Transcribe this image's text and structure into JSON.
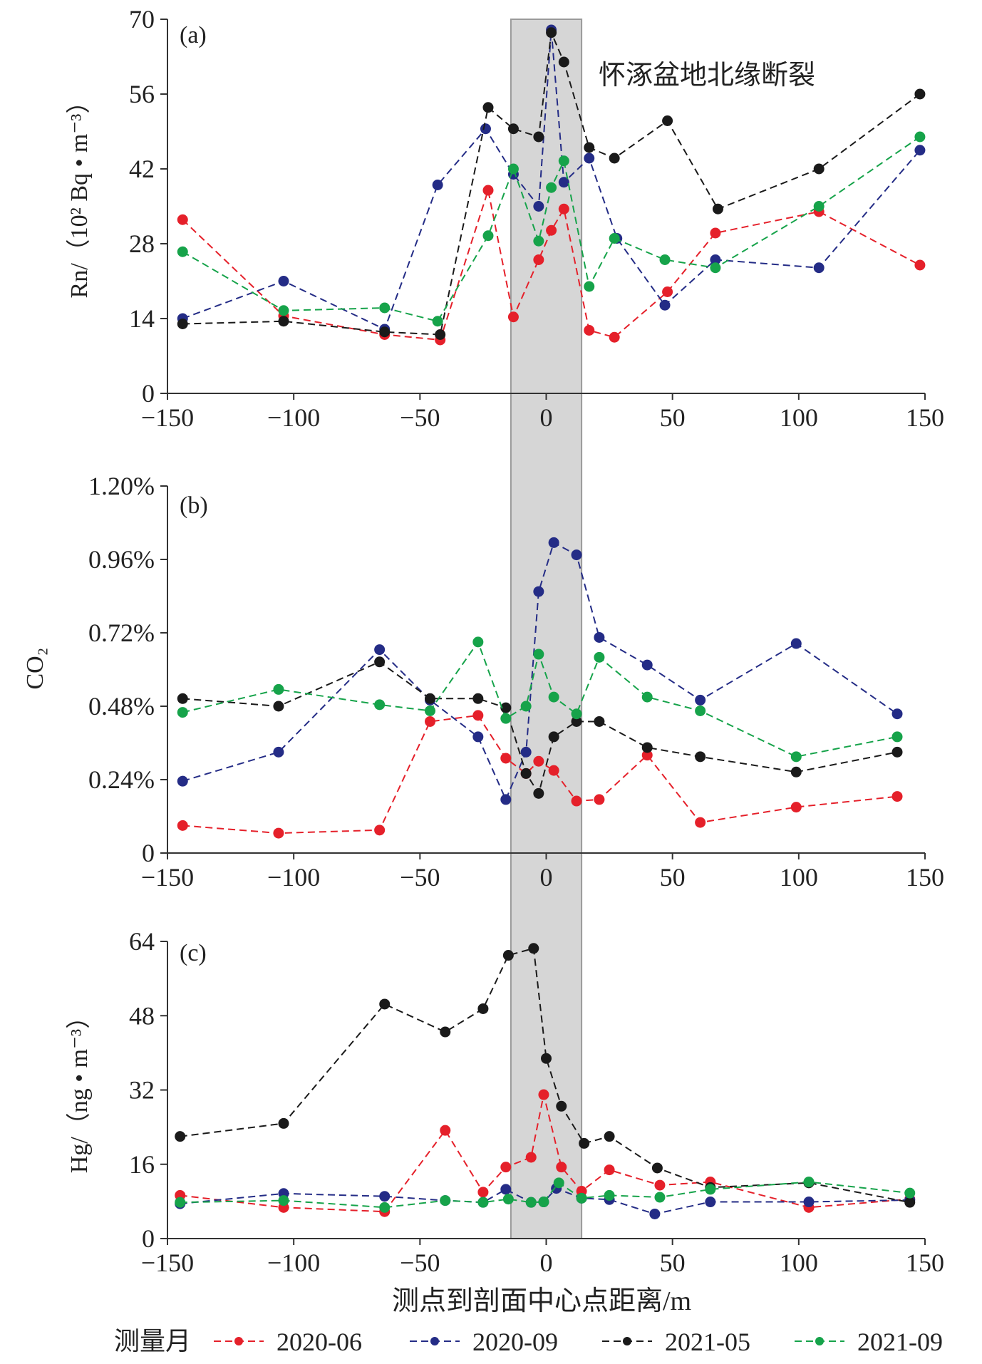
{
  "colors": {
    "2020-06": "#e5202a",
    "2020-09": "#242c86",
    "2021-05": "#1a1a1a",
    "2021-09": "#16a34a",
    "band": "#d6d6d6",
    "axis": "#333333"
  },
  "annotation": "怀涿盆地北缘断裂",
  "xlabel": "测点到剖面中心点距离/m",
  "legend": {
    "title": "测量月",
    "items": [
      "2020-06",
      "2020-09",
      "2021-05",
      "2021-09"
    ]
  },
  "chart_data": [
    {
      "type": "line",
      "panel_label": "(a)",
      "ylabel": "Rn/（10² Bq • m⁻³）",
      "xlim": [
        -150,
        150
      ],
      "ylim": [
        0,
        70
      ],
      "xticks": [
        "−150",
        "−100",
        "−50",
        "0",
        "50",
        "100",
        "150"
      ],
      "yticks": [
        "0",
        "14",
        "28",
        "42",
        "56",
        "70"
      ],
      "shaded_band_x": [
        -14,
        14
      ],
      "series": [
        {
          "name": "2020-06",
          "x": [
            -144,
            -104,
            -64,
            -42,
            -23,
            -13,
            -3,
            2,
            7,
            17,
            27,
            48,
            67,
            108,
            148
          ],
          "y": [
            32.5,
            14.5,
            11,
            10,
            38,
            14.3,
            25,
            30.5,
            34.5,
            11.8,
            10.5,
            19,
            30,
            34,
            24
          ]
        },
        {
          "name": "2020-09",
          "x": [
            -144,
            -104,
            -64,
            -43,
            -24,
            -13,
            -3,
            2,
            7,
            17,
            28,
            47,
            67,
            108,
            148
          ],
          "y": [
            14,
            21,
            12,
            39,
            49.5,
            41,
            35,
            68,
            39.5,
            44,
            29,
            16.5,
            25,
            23.5,
            45.5
          ]
        },
        {
          "name": "2021-05",
          "x": [
            -144,
            -104,
            -64,
            -42,
            -23,
            -13,
            -3,
            2,
            7,
            17,
            27,
            48,
            68,
            108,
            148
          ],
          "y": [
            13,
            13.5,
            11.5,
            11,
            53.5,
            49.5,
            48,
            67.5,
            62,
            46,
            44,
            51,
            34.5,
            42,
            56
          ]
        },
        {
          "name": "2021-09",
          "x": [
            -144,
            -104,
            -64,
            -43,
            -23,
            -13,
            -3,
            2,
            7,
            17,
            27,
            47,
            67,
            108,
            148
          ],
          "y": [
            26.5,
            15.5,
            16,
            13.5,
            29.5,
            42,
            28.5,
            38.5,
            43.5,
            20,
            29,
            25,
            23.5,
            35,
            48
          ]
        }
      ]
    },
    {
      "type": "line",
      "panel_label": "(b)",
      "ylabel": "CO₂",
      "xlim": [
        -150,
        150
      ],
      "ylim": [
        0,
        1.2
      ],
      "xticks": [
        "−150",
        "−100",
        "−50",
        "0",
        "50",
        "100",
        "150"
      ],
      "yticks": [
        "0",
        "0.24%",
        "0.48%",
        "0.72%",
        "0.96%",
        "1.20%"
      ],
      "shaded_band_x": [
        -14,
        14
      ],
      "series": [
        {
          "name": "2020-06",
          "x": [
            -144,
            -106,
            -66,
            -46,
            -27,
            -16,
            -8,
            -3,
            3,
            12,
            21,
            40,
            61,
            99,
            139
          ],
          "y": [
            0.09,
            0.065,
            0.075,
            0.43,
            0.45,
            0.31,
            0.26,
            0.3,
            0.27,
            0.17,
            0.175,
            0.32,
            0.1,
            0.15,
            0.185
          ]
        },
        {
          "name": "2020-09",
          "x": [
            -144,
            -106,
            -66,
            -46,
            -27,
            -16,
            -8,
            -3,
            3,
            12,
            21,
            40,
            61,
            99,
            139
          ],
          "y": [
            0.235,
            0.33,
            0.665,
            0.5,
            0.38,
            0.175,
            0.33,
            0.855,
            1.015,
            0.975,
            0.705,
            0.615,
            0.5,
            0.685,
            0.455
          ]
        },
        {
          "name": "2021-05",
          "x": [
            -144,
            -106,
            -66,
            -46,
            -27,
            -16,
            -8,
            -3,
            3,
            12,
            21,
            40,
            61,
            99,
            139
          ],
          "y": [
            0.505,
            0.48,
            0.625,
            0.505,
            0.505,
            0.475,
            0.26,
            0.195,
            0.38,
            0.43,
            0.43,
            0.345,
            0.315,
            0.265,
            0.33
          ]
        },
        {
          "name": "2021-09",
          "x": [
            -144,
            -106,
            -66,
            -46,
            -27,
            -16,
            -8,
            -3,
            3,
            12,
            21,
            40,
            61,
            99,
            139
          ],
          "y": [
            0.46,
            0.535,
            0.485,
            0.465,
            0.69,
            0.44,
            0.48,
            0.65,
            0.51,
            0.455,
            0.64,
            0.51,
            0.465,
            0.315,
            0.38
          ]
        }
      ]
    },
    {
      "type": "line",
      "panel_label": "(c)",
      "ylabel": "Hg/（ng • m⁻³）",
      "xlim": [
        -150,
        150
      ],
      "ylim": [
        0,
        64
      ],
      "xticks": [
        "−150",
        "−100",
        "−50",
        "0",
        "50",
        "100",
        "150"
      ],
      "yticks": [
        "0",
        "16",
        "32",
        "48",
        "64"
      ],
      "shaded_band_x": [
        -14,
        14
      ],
      "series": [
        {
          "name": "2020-06",
          "x": [
            -145,
            -104,
            -64,
            -40,
            -25,
            -16,
            -6,
            -1,
            6,
            14,
            25,
            45,
            65,
            104,
            144
          ],
          "y": [
            9.3,
            6.7,
            5.8,
            23.3,
            10,
            15.4,
            17.5,
            31,
            15.4,
            10.2,
            14.8,
            11.5,
            12.2,
            6.7,
            8.5
          ]
        },
        {
          "name": "2020-09",
          "x": [
            -145,
            -104,
            -64,
            -40,
            -25,
            -16,
            -6,
            -1,
            4,
            14,
            25,
            43,
            65,
            104,
            144
          ],
          "y": [
            7.5,
            9.7,
            9.1,
            8.2,
            7.8,
            10.6,
            7.8,
            7.9,
            10.8,
            8.7,
            8.4,
            5.3,
            7.9,
            7.9,
            8.3
          ]
        },
        {
          "name": "2021-05",
          "x": [
            -145,
            -104,
            -64,
            -40,
            -25,
            -15,
            -5,
            0,
            6,
            15,
            25,
            44,
            65,
            104,
            144
          ],
          "y": [
            22,
            24.8,
            50.5,
            44.5,
            49.5,
            61,
            62.5,
            38.8,
            28.5,
            20.5,
            22,
            15.2,
            11,
            12,
            7.8
          ]
        },
        {
          "name": "2021-09",
          "x": [
            -145,
            -104,
            -64,
            -40,
            -25,
            -15,
            -6,
            -1,
            5,
            14,
            25,
            45,
            65,
            104,
            144
          ],
          "y": [
            7.8,
            8.2,
            6.7,
            8.2,
            7.8,
            8.5,
            7.8,
            7.9,
            12,
            8.7,
            9.3,
            8.9,
            10.6,
            12.2,
            9.8
          ]
        }
      ]
    }
  ]
}
